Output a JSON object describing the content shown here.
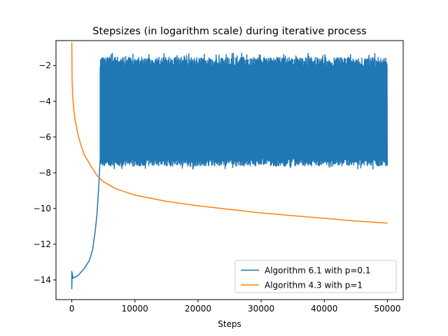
{
  "chart_data": {
    "type": "line",
    "title": "Stepsizes (in logarithm scale) during iterative process",
    "xlabel": "Steps",
    "ylabel": "",
    "xlim": [
      -2500,
      52500
    ],
    "ylim": [
      -15.1,
      -0.6
    ],
    "xticks": [
      0,
      10000,
      20000,
      30000,
      40000,
      50000
    ],
    "yticks": [
      -14,
      -12,
      -10,
      -8,
      -6,
      -4,
      -2
    ],
    "grid": false,
    "legend_position": "lower right",
    "series": [
      {
        "name": "Algorithm 6.1 with p=0.1",
        "color": "#1f77b4",
        "style": "oscillating",
        "initial_points": [
          {
            "x": 0,
            "y": -13.5
          },
          {
            "x": 0,
            "y": -14.5
          },
          {
            "x": 50,
            "y": -13.6
          },
          {
            "x": 200,
            "y": -13.9
          },
          {
            "x": 1000,
            "y": -13.75
          },
          {
            "x": 2000,
            "y": -13.35
          },
          {
            "x": 2800,
            "y": -12.9
          },
          {
            "x": 3300,
            "y": -12.3
          },
          {
            "x": 3700,
            "y": -11.3
          },
          {
            "x": 4000,
            "y": -10.3
          },
          {
            "x": 4300,
            "y": -8.6
          },
          {
            "x": 4500,
            "y": -7.2
          }
        ],
        "oscillation": {
          "x_start": 4500,
          "x_end": 50000,
          "upper": -1.8,
          "lower": -7.4,
          "upper_extreme": -1.5,
          "lower_extreme": -7.8
        }
      },
      {
        "name": "Algorithm 4.3 with p=1",
        "color": "#ff7f0e",
        "style": "smooth",
        "points": [
          {
            "x": 0,
            "y": -0.7
          },
          {
            "x": 50,
            "y": -2.8
          },
          {
            "x": 150,
            "y": -3.8
          },
          {
            "x": 300,
            "y": -4.4
          },
          {
            "x": 500,
            "y": -5.0
          },
          {
            "x": 1000,
            "y": -5.9
          },
          {
            "x": 1500,
            "y": -6.5
          },
          {
            "x": 2000,
            "y": -7.0
          },
          {
            "x": 3000,
            "y": -7.6
          },
          {
            "x": 4000,
            "y": -8.15
          },
          {
            "x": 5000,
            "y": -8.5
          },
          {
            "x": 7000,
            "y": -8.9
          },
          {
            "x": 10000,
            "y": -9.25
          },
          {
            "x": 15000,
            "y": -9.6
          },
          {
            "x": 20000,
            "y": -9.85
          },
          {
            "x": 25000,
            "y": -10.05
          },
          {
            "x": 30000,
            "y": -10.25
          },
          {
            "x": 35000,
            "y": -10.4
          },
          {
            "x": 40000,
            "y": -10.55
          },
          {
            "x": 45000,
            "y": -10.7
          },
          {
            "x": 50000,
            "y": -10.82
          }
        ]
      }
    ]
  }
}
